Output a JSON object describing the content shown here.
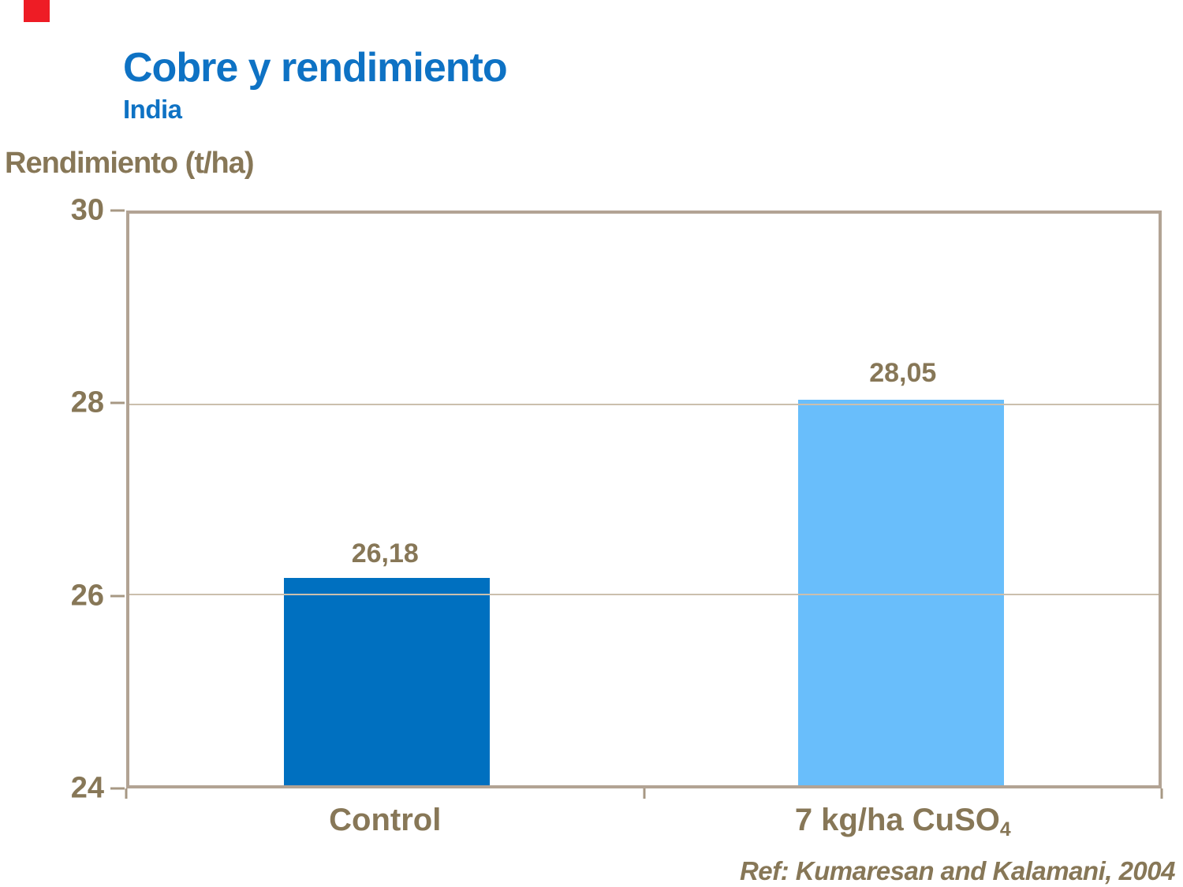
{
  "slide": {
    "background_color": "#FFFFFF",
    "accent_color": "#EE1C25"
  },
  "header": {
    "title": "Cobre y rendimiento",
    "subtitle": "India",
    "title_color": "#0E72C4"
  },
  "chart_data": {
    "type": "bar",
    "title": "Cobre y rendimiento — India",
    "ylabel": "Rendimiento (t/ha)",
    "xlabel": "",
    "categories": [
      "Control",
      "7 kg/ha CuSO4"
    ],
    "values": [
      26.18,
      28.05
    ],
    "value_labels": [
      "26,18",
      "28,05"
    ],
    "category_labels": [
      {
        "text": "Control",
        "sub": ""
      },
      {
        "text": "7 kg/ha CuSO",
        "sub": "4"
      }
    ],
    "ylim": [
      24,
      30
    ],
    "yticks": [
      30,
      28,
      26,
      24
    ],
    "grid": true,
    "legend": "none",
    "bar_colors": [
      "#0070C0",
      "#69BEFB"
    ],
    "text_color": "#877757",
    "axis_frame_color": "#B2A394",
    "gridline_color": "#CBBFAD",
    "tick_color": "#A79884",
    "bar_width_pct": 20,
    "bar_centers_pct": [
      25,
      75
    ]
  },
  "footer": {
    "reference": "Ref: Kumaresan and Kalamani, 2004"
  }
}
